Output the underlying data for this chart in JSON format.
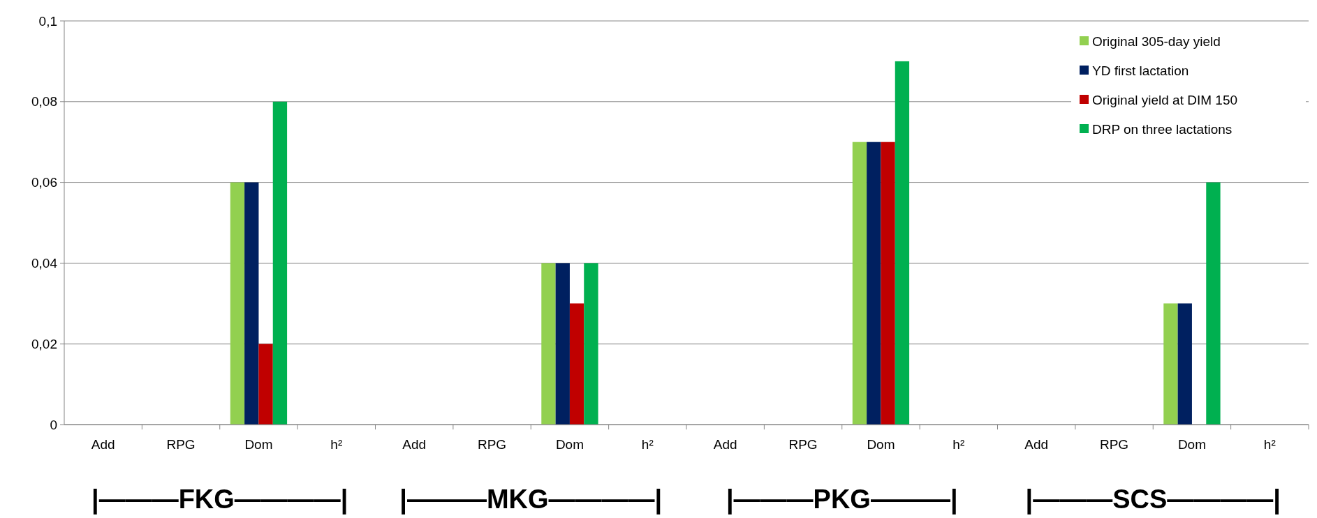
{
  "chart_data": {
    "type": "bar",
    "categories": [
      "Add",
      "RPG",
      "Dom",
      "h²",
      "Add",
      "RPG",
      "Dom",
      "h²",
      "Add",
      "RPG",
      "Dom",
      "h²",
      "Add",
      "RPG",
      "Dom",
      "h²"
    ],
    "series": [
      {
        "name": "Original 305-day yield",
        "color": "#92d050",
        "values": [
          0,
          0,
          0.06,
          0,
          0,
          0,
          0.04,
          0,
          0,
          0,
          0.07,
          0,
          0,
          0,
          0.03,
          0
        ]
      },
      {
        "name": "YD first lactation",
        "color": "#002060",
        "values": [
          0,
          0,
          0.06,
          0,
          0,
          0,
          0.04,
          0,
          0,
          0,
          0.07,
          0,
          0,
          0,
          0.03,
          0
        ]
      },
      {
        "name": "Original yield at DIM 150",
        "color": "#c00000",
        "values": [
          0,
          0,
          0.02,
          0,
          0,
          0,
          0.03,
          0,
          0,
          0,
          0.07,
          0,
          0,
          0,
          0,
          0
        ]
      },
      {
        "name": "DRP on three lactations",
        "color": "#00b050",
        "values": [
          0,
          0,
          0.08,
          0,
          0,
          0,
          0.04,
          0,
          0,
          0,
          0.09,
          0,
          0,
          0,
          0.06,
          0
        ]
      }
    ],
    "ylim": [
      0,
      0.1
    ],
    "yticks": [
      {
        "value": 0,
        "label": "0"
      },
      {
        "value": 0.02,
        "label": "0,02"
      },
      {
        "value": 0.04,
        "label": "0,04"
      },
      {
        "value": 0.06,
        "label": "0,06"
      },
      {
        "value": 0.08,
        "label": "0,08"
      },
      {
        "value": 0.1,
        "label": "0,1"
      }
    ],
    "grid": "y",
    "legend": "top right",
    "annotations": [
      "|———FKG————|",
      "|———MKG————|",
      "|———PKG———|",
      "|———SCS————|"
    ]
  }
}
